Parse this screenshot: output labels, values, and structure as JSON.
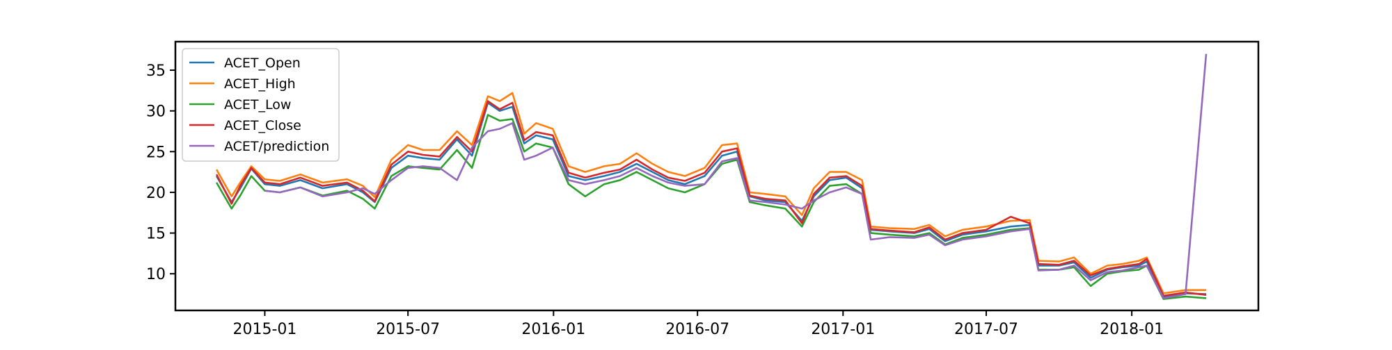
{
  "chart_data": {
    "type": "line",
    "title": "",
    "xlabel": "",
    "ylabel": "",
    "xlim": [
      "2014-09-10",
      "2018-06-10"
    ],
    "ylim": [
      5.5,
      38.5
    ],
    "grid": false,
    "legend_position": "top-left",
    "x_ticks": [
      "2015-01",
      "2015-07",
      "2016-01",
      "2016-07",
      "2017-01",
      "2017-07",
      "2018-01"
    ],
    "x_tick_dates": [
      "2015-01-01",
      "2015-07-01",
      "2016-01-01",
      "2016-07-01",
      "2017-01-01",
      "2017-07-01",
      "2018-01-01"
    ],
    "y_ticks": [
      10,
      15,
      20,
      25,
      30,
      35
    ],
    "x": [
      "2014-11-01",
      "2014-11-20",
      "2014-12-01",
      "2014-12-15",
      "2015-01-01",
      "2015-01-20",
      "2015-02-15",
      "2015-03-15",
      "2015-04-15",
      "2015-05-05",
      "2015-05-20",
      "2015-06-10",
      "2015-07-01",
      "2015-07-20",
      "2015-08-10",
      "2015-09-01",
      "2015-09-20",
      "2015-10-10",
      "2015-10-25",
      "2015-11-10",
      "2015-11-25",
      "2015-12-10",
      "2015-12-31",
      "2016-01-20",
      "2016-02-10",
      "2016-03-05",
      "2016-03-25",
      "2016-04-15",
      "2016-05-05",
      "2016-05-25",
      "2016-06-15",
      "2016-07-10",
      "2016-08-01",
      "2016-08-20",
      "2016-09-05",
      "2016-09-25",
      "2016-10-20",
      "2016-11-10",
      "2016-11-25",
      "2016-12-15",
      "2017-01-05",
      "2017-01-25",
      "2017-02-05",
      "2017-03-01",
      "2017-04-01",
      "2017-04-20",
      "2017-05-10",
      "2017-06-01",
      "2017-07-01",
      "2017-08-01",
      "2017-08-25",
      "2017-09-05",
      "2017-10-01",
      "2017-10-20",
      "2017-11-10",
      "2017-12-01",
      "2017-12-20",
      "2018-01-10",
      "2018-01-20",
      "2018-02-10",
      "2018-03-10",
      "2018-04-05"
    ],
    "series": [
      {
        "name": "ACET_Open",
        "color": "#1f77b4",
        "values": [
          22.0,
          18.8,
          20.5,
          22.9,
          21.0,
          20.8,
          21.5,
          20.5,
          21.0,
          20.0,
          18.8,
          23.0,
          24.5,
          24.2,
          24.0,
          26.5,
          24.5,
          31.0,
          30.0,
          30.5,
          26.0,
          27.0,
          26.5,
          22.0,
          21.5,
          22.0,
          22.5,
          23.5,
          22.5,
          21.5,
          21.0,
          22.0,
          24.5,
          25.0,
          19.5,
          19.0,
          18.8,
          16.5,
          19.5,
          21.5,
          21.8,
          20.5,
          15.4,
          15.2,
          15.0,
          15.5,
          14.0,
          14.8,
          15.2,
          15.8,
          16.0,
          11.0,
          11.0,
          11.4,
          9.5,
          10.5,
          10.8,
          11.0,
          11.5,
          7.2,
          7.6,
          7.5
        ]
      },
      {
        "name": "ACET_High",
        "color": "#ff7f0e",
        "values": [
          22.8,
          19.5,
          21.2,
          23.2,
          21.6,
          21.4,
          22.2,
          21.2,
          21.6,
          20.8,
          19.4,
          24.0,
          25.8,
          25.2,
          25.2,
          27.5,
          25.8,
          31.8,
          31.2,
          32.2,
          27.2,
          28.5,
          27.8,
          23.2,
          22.5,
          23.2,
          23.5,
          24.8,
          23.5,
          22.5,
          22.0,
          23.0,
          25.8,
          26.0,
          20.0,
          19.8,
          19.5,
          17.2,
          20.5,
          22.5,
          22.5,
          21.5,
          15.8,
          15.6,
          15.5,
          16.0,
          14.6,
          15.4,
          15.8,
          16.5,
          16.6,
          11.6,
          11.5,
          12.0,
          10.0,
          11.0,
          11.2,
          11.6,
          12.0,
          7.6,
          8.0,
          8.0
        ]
      },
      {
        "name": "ACET_Low",
        "color": "#2ca02c",
        "values": [
          21.2,
          18.0,
          19.6,
          22.0,
          20.2,
          20.0,
          20.6,
          19.6,
          20.2,
          19.2,
          18.0,
          22.0,
          23.2,
          23.0,
          22.8,
          25.2,
          23.0,
          29.5,
          28.8,
          29.0,
          25.0,
          26.0,
          25.5,
          21.0,
          19.5,
          21.0,
          21.5,
          22.5,
          21.5,
          20.5,
          20.0,
          21.0,
          23.5,
          24.0,
          18.8,
          18.4,
          18.0,
          15.8,
          18.8,
          20.8,
          21.0,
          19.8,
          15.0,
          14.8,
          14.6,
          15.0,
          13.6,
          14.4,
          14.8,
          15.4,
          15.6,
          10.5,
          10.5,
          10.8,
          8.5,
          10.0,
          10.3,
          10.5,
          11.0,
          6.9,
          7.2,
          7.0
        ]
      },
      {
        "name": "ACET_Close",
        "color": "#d62728",
        "values": [
          22.2,
          18.6,
          20.8,
          23.0,
          21.2,
          21.0,
          21.8,
          20.8,
          21.2,
          20.2,
          18.9,
          23.4,
          25.0,
          24.6,
          24.4,
          26.8,
          25.0,
          31.2,
          30.2,
          31.0,
          26.4,
          27.4,
          27.0,
          22.4,
          21.8,
          22.4,
          22.8,
          24.0,
          22.8,
          21.8,
          21.4,
          22.4,
          25.0,
          25.4,
          19.6,
          19.2,
          19.0,
          16.2,
          19.8,
          21.8,
          22.0,
          20.8,
          15.5,
          15.3,
          15.1,
          15.7,
          14.2,
          15.0,
          15.4,
          17.0,
          16.2,
          11.2,
          11.1,
          11.6,
          9.8,
          10.6,
          10.9,
          11.2,
          11.8,
          7.3,
          7.7,
          7.4
        ]
      },
      {
        "name": "ACET/prediction",
        "color": "#9467bd",
        "values": [
          null,
          null,
          null,
          null,
          20.2,
          20.0,
          20.6,
          19.5,
          20.0,
          20.5,
          19.8,
          21.5,
          23.0,
          23.2,
          23.0,
          21.5,
          25.5,
          27.5,
          27.8,
          28.5,
          24.0,
          24.5,
          25.5,
          21.5,
          21.0,
          21.5,
          22.0,
          23.0,
          22.0,
          21.2,
          20.8,
          21.0,
          23.8,
          24.2,
          19.0,
          18.8,
          18.5,
          18.0,
          19.0,
          20.0,
          20.6,
          19.8,
          14.2,
          14.5,
          14.4,
          14.8,
          13.5,
          14.2,
          14.6,
          15.2,
          15.5,
          10.4,
          10.5,
          11.0,
          9.2,
          10.2,
          10.4,
          10.8,
          11.0,
          7.0,
          7.5,
          37.0
        ]
      }
    ]
  }
}
